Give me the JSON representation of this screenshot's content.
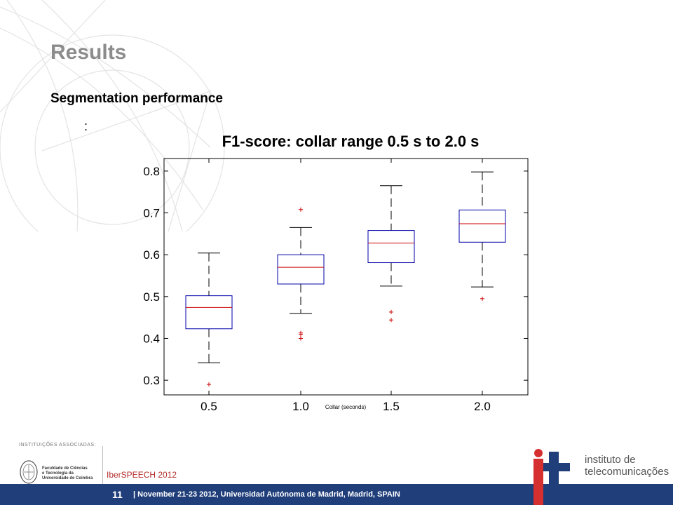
{
  "slide": {
    "title": "Results",
    "subtitle": "Segmentation performance",
    "colon": ":"
  },
  "footer": {
    "page_number": "11",
    "text": "|   November 21-23 2012, Universidad Autónoma de Madrid, Madrid, SPAIN",
    "conference": "IberSPEECH 2012",
    "associated_label": "INSTITUIÇÕES ASSOCIADAS:",
    "uc_name": [
      "Faculdade de Ciências",
      "e Tecnologia da",
      "Universidade de Coimbra"
    ],
    "it_name": [
      "instituto de",
      "telecomunicações"
    ],
    "colors": {
      "bar": "#1f3e7a",
      "it_red": "#d62f2f",
      "it_blue": "#1f3e7a"
    }
  },
  "chart_data": {
    "type": "boxplot",
    "title": "F1-score: collar range 0.5 s to 2.0 s",
    "xlabel": "Collar (seconds)",
    "ylabel": "",
    "categories": [
      "0.5",
      "1.0",
      "1.5",
      "2.0"
    ],
    "yticks": [
      "0.3",
      "0.4",
      "0.5",
      "0.6",
      "0.7",
      "0.8"
    ],
    "ylim": [
      0.265,
      0.83
    ],
    "grid": false,
    "box_color": "#0000aa",
    "median_color": "#cc0000",
    "whisker_color": "#000000",
    "boxes": [
      {
        "category": "0.5",
        "whisker_low": 0.342,
        "q1": 0.423,
        "median": 0.474,
        "q3": 0.502,
        "whisker_high": 0.604,
        "outliers": [
          0.29
        ]
      },
      {
        "category": "1.0",
        "whisker_low": 0.46,
        "q1": 0.53,
        "median": 0.57,
        "q3": 0.6,
        "whisker_high": 0.665,
        "outliers": [
          0.708,
          0.413,
          0.41,
          0.4
        ]
      },
      {
        "category": "1.5",
        "whisker_low": 0.525,
        "q1": 0.581,
        "median": 0.628,
        "q3": 0.658,
        "whisker_high": 0.765,
        "outliers": [
          0.463,
          0.444
        ]
      },
      {
        "category": "2.0",
        "whisker_low": 0.523,
        "q1": 0.63,
        "median": 0.674,
        "q3": 0.707,
        "whisker_high": 0.798,
        "outliers": [
          0.495
        ]
      }
    ]
  }
}
